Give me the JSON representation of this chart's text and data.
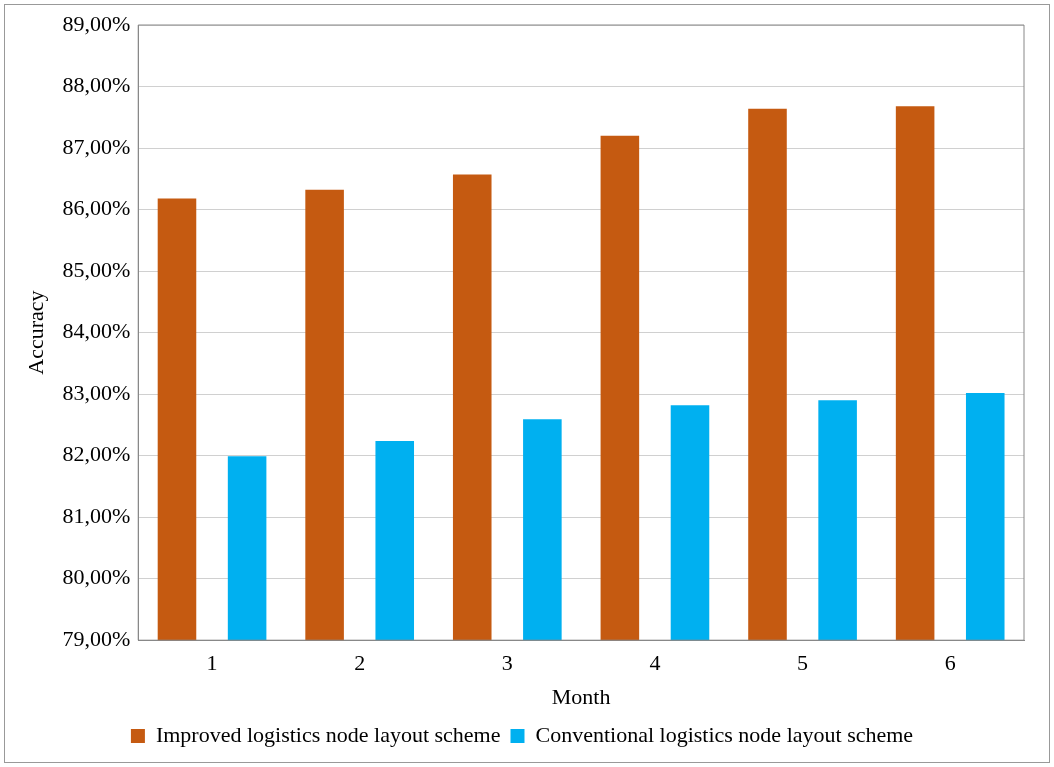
{
  "chart_data": {
    "type": "bar",
    "xlabel": "Month",
    "ylabel": "Accuracy",
    "categories": [
      "1",
      "2",
      "3",
      "4",
      "5",
      "6"
    ],
    "series": [
      {
        "name": "Improved logistics node layout scheme",
        "color": "#c55a11",
        "values": [
          86.18,
          86.32,
          86.57,
          87.2,
          87.64,
          87.68
        ]
      },
      {
        "name": "Conventional logistics node layout scheme",
        "color": "#00b0f0",
        "values": [
          81.99,
          82.24,
          82.59,
          82.82,
          82.9,
          83.02
        ]
      }
    ],
    "ylim": [
      79,
      89
    ],
    "yticks": [
      {
        "value": 79,
        "label": "79,00%"
      },
      {
        "value": 80,
        "label": "80,00%"
      },
      {
        "value": 81,
        "label": "81,00%"
      },
      {
        "value": 82,
        "label": "82,00%"
      },
      {
        "value": 83,
        "label": "83,00%"
      },
      {
        "value": 84,
        "label": "84,00%"
      },
      {
        "value": 85,
        "label": "85,00%"
      },
      {
        "value": 86,
        "label": "86,00%"
      },
      {
        "value": 87,
        "label": "87,00%"
      },
      {
        "value": 88,
        "label": "88,00%"
      },
      {
        "value": 89,
        "label": "89,00%"
      }
    ],
    "grid": "y",
    "legend": "bottom"
  }
}
